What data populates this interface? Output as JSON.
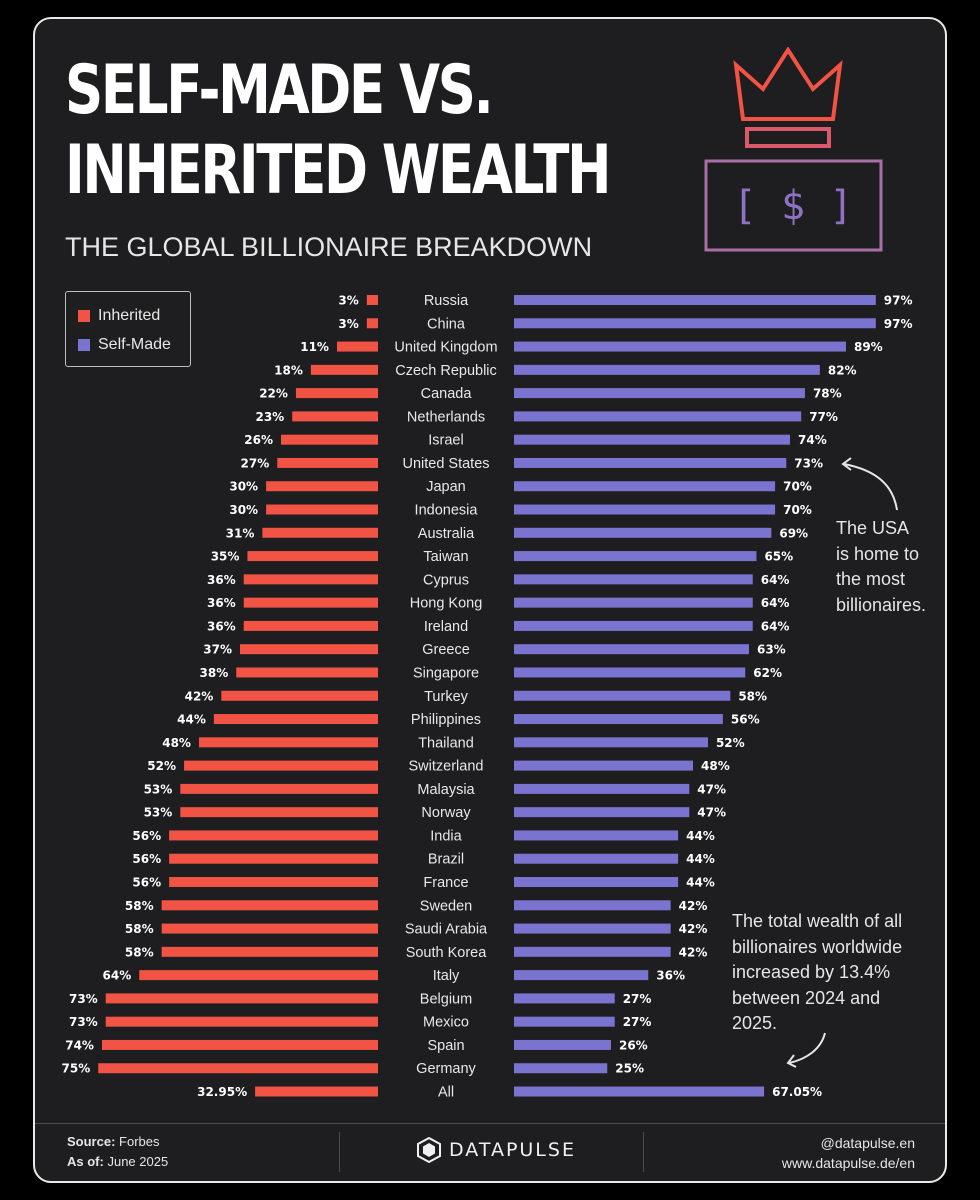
{
  "title_line1": "SELF-MADE VS.",
  "title_line2": "INHERITED WEALTH",
  "subtitle": "THE GLOBAL BILLIONAIRE BREAKDOWN",
  "icons": {
    "crown": "crown-icon",
    "money": "dollar-bill-icon",
    "brand": "hexagon-logo-icon"
  },
  "colors": {
    "inherited": "#f15345",
    "self_made": "#7a74d0",
    "background": "#1e1d1f"
  },
  "notes": {
    "usa": [
      "The USA",
      "is home to",
      "the most",
      "billionaires."
    ],
    "total": [
      "The total wealth of all",
      "billionaires worldwide",
      "increased by 13.4%",
      "between 2024 and",
      "2025."
    ]
  },
  "footer": {
    "source_label": "Source:",
    "source_value": "Forbes",
    "asof_label": "As of:",
    "asof_value": "June 2025",
    "brand": "DATAPULSE",
    "handle": "@datapulse.en",
    "website": "www.datapulse.de/en"
  },
  "chart_data": {
    "type": "bar",
    "orientation": "horizontal-butterfly",
    "title": "SELF-MADE VS. INHERITED WEALTH",
    "subtitle": "THE GLOBAL BILLIONAIRE BREAKDOWN",
    "unit": "%",
    "legend": {
      "position": "top-left",
      "entries": [
        "Inherited",
        "Self-Made"
      ]
    },
    "categories": [
      "Russia",
      "China",
      "United Kingdom",
      "Czech Republic",
      "Canada",
      "Netherlands",
      "Israel",
      "United States",
      "Japan",
      "Indonesia",
      "Australia",
      "Taiwan",
      "Cyprus",
      "Hong Kong",
      "Ireland",
      "Greece",
      "Singapore",
      "Turkey",
      "Philippines",
      "Thailand",
      "Switzerland",
      "Malaysia",
      "Norway",
      "India",
      "Brazil",
      "France",
      "Sweden",
      "Saudi Arabia",
      "South Korea",
      "Italy",
      "Belgium",
      "Mexico",
      "Spain",
      "Germany",
      "All"
    ],
    "series": [
      {
        "name": "Inherited",
        "values": [
          3,
          3,
          11,
          18,
          22,
          23,
          26,
          27,
          30,
          30,
          31,
          35,
          36,
          36,
          36,
          37,
          38,
          42,
          44,
          48,
          52,
          53,
          53,
          56,
          56,
          56,
          58,
          58,
          58,
          64,
          73,
          73,
          74,
          75,
          32.95
        ]
      },
      {
        "name": "Self-Made",
        "values": [
          97,
          97,
          89,
          82,
          78,
          77,
          74,
          73,
          70,
          70,
          69,
          65,
          64,
          64,
          64,
          63,
          62,
          58,
          56,
          52,
          48,
          47,
          47,
          44,
          44,
          44,
          42,
          42,
          42,
          36,
          27,
          27,
          26,
          25,
          67.05
        ]
      }
    ],
    "xlim": [
      0,
      100
    ],
    "grid": false
  }
}
